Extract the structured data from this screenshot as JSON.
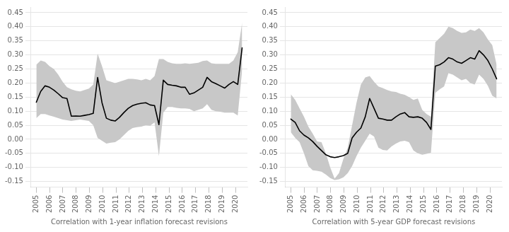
{
  "chart_data": [
    {
      "type": "line",
      "xlabel": "Correlation with 1-year inflation forecast revisions",
      "x": [
        2005,
        2005.329787,
        2005.659574,
        2005.989362,
        2006.319149,
        2006.648936,
        2006.978723,
        2007.308511,
        2007.638298,
        2007.968085,
        2008.297872,
        2008.62766,
        2008.957447,
        2009.287234,
        2009.617021,
        2009.946809,
        2010.276596,
        2010.606383,
        2010.93617,
        2011.265957,
        2011.595745,
        2011.925532,
        2012.255319,
        2012.585106,
        2012.914894,
        2013.244681,
        2013.574468,
        2013.904255,
        2014.234043,
        2014.56383,
        2014.893617,
        2015.223404,
        2015.553191,
        2015.882979,
        2016.212766,
        2016.542553,
        2016.87234,
        2017.202128,
        2017.531915,
        2017.861702,
        2018.191489,
        2018.521277,
        2018.851064,
        2019.180851,
        2019.510638,
        2019.840426,
        2020.170213,
        2020.5
      ],
      "values": [
        0.132,
        0.17,
        0.19,
        0.185,
        0.175,
        0.162,
        0.148,
        0.145,
        0.082,
        0.083,
        0.082,
        0.085,
        0.088,
        0.092,
        0.22,
        0.13,
        0.075,
        0.068,
        0.065,
        0.078,
        0.095,
        0.11,
        0.12,
        0.125,
        0.128,
        0.13,
        0.122,
        0.12,
        0.052,
        0.21,
        0.195,
        0.192,
        0.19,
        0.185,
        0.185,
        0.16,
        0.165,
        0.175,
        0.185,
        0.22,
        0.205,
        0.198,
        0.19,
        0.182,
        0.195,
        0.205,
        0.195,
        0.325
      ],
      "band": {
        "upper": [
          0.265,
          0.28,
          0.275,
          0.26,
          0.25,
          0.23,
          0.205,
          0.185,
          0.178,
          0.173,
          0.17,
          0.175,
          0.18,
          0.195,
          0.305,
          0.26,
          0.21,
          0.205,
          0.2,
          0.205,
          0.21,
          0.215,
          0.215,
          0.213,
          0.21,
          0.215,
          0.21,
          0.225,
          0.285,
          0.285,
          0.275,
          0.27,
          0.268,
          0.268,
          0.27,
          0.268,
          0.27,
          0.272,
          0.278,
          0.28,
          0.27,
          0.268,
          0.268,
          0.268,
          0.268,
          0.28,
          0.31,
          0.415
        ],
        "lower": [
          0.075,
          0.09,
          0.09,
          0.085,
          0.08,
          0.075,
          0.07,
          0.068,
          0.065,
          0.068,
          0.07,
          0.068,
          0.065,
          0.05,
          0.005,
          -0.005,
          -0.015,
          -0.012,
          -0.01,
          0.0,
          0.015,
          0.03,
          0.04,
          0.043,
          0.045,
          0.05,
          0.048,
          0.06,
          -0.06,
          0.095,
          0.115,
          0.115,
          0.112,
          0.11,
          0.11,
          0.108,
          0.1,
          0.105,
          0.11,
          0.125,
          0.105,
          0.1,
          0.098,
          0.095,
          0.095,
          0.095,
          0.085,
          0.245
        ],
        "color": "#c8c8c8"
      },
      "color": "#000000",
      "xlim": [
        2004.6,
        2020.9
      ],
      "xticks": [
        2005,
        2006,
        2007,
        2008,
        2009,
        2010,
        2011,
        2012,
        2013,
        2014,
        2015,
        2016,
        2017,
        2018,
        2019,
        2020
      ],
      "ylim": [
        -0.17,
        0.47
      ],
      "yticks": [
        -0.15,
        {
          "value": -0.1,
          "label": "-0.10"
        },
        -0.05,
        {
          "value": 0.0,
          "label": "0.00"
        },
        0.05,
        {
          "value": 0.1,
          "label": "0.10"
        },
        0.15,
        {
          "value": 0.2,
          "label": "0.20"
        },
        0.25,
        {
          "value": 0.3,
          "label": "0.30"
        },
        0.35,
        {
          "value": 0.4,
          "label": "0.40"
        },
        0.45
      ],
      "grid": "y"
    },
    {
      "type": "line",
      "xlabel": "Correlation with 5-year GDP forecast revisions",
      "x": [
        2005,
        2005.329787,
        2005.659574,
        2005.989362,
        2006.319149,
        2006.648936,
        2006.978723,
        2007.308511,
        2007.638298,
        2007.968085,
        2008.297872,
        2008.62766,
        2008.957447,
        2009.287234,
        2009.617021,
        2009.946809,
        2010.276596,
        2010.606383,
        2010.93617,
        2011.265957,
        2011.595745,
        2011.925532,
        2012.255319,
        2012.585106,
        2012.914894,
        2013.244681,
        2013.574468,
        2013.904255,
        2014.234043,
        2014.56383,
        2014.893617,
        2015.223404,
        2015.553191,
        2015.882979,
        2016.212766,
        2016.542553,
        2016.87234,
        2017.202128,
        2017.531915,
        2017.861702,
        2018.191489,
        2018.521277,
        2018.851064,
        2019.180851,
        2019.510638,
        2019.840426,
        2020.170213,
        2020.5
      ],
      "values": [
        0.072,
        0.06,
        0.03,
        0.015,
        0.005,
        -0.008,
        -0.025,
        -0.04,
        -0.055,
        -0.062,
        -0.065,
        -0.062,
        -0.058,
        -0.05,
        0.005,
        0.025,
        0.04,
        0.08,
        0.145,
        0.11,
        0.075,
        0.072,
        0.068,
        0.068,
        0.08,
        0.09,
        0.095,
        0.08,
        0.078,
        0.08,
        0.075,
        0.06,
        0.035,
        0.26,
        0.265,
        0.275,
        0.29,
        0.285,
        0.275,
        0.27,
        0.28,
        0.29,
        0.285,
        0.315,
        0.3,
        0.28,
        0.25,
        0.215
      ],
      "band": {
        "upper": [
          0.16,
          0.14,
          0.11,
          0.08,
          0.045,
          0.02,
          -0.008,
          -0.01,
          -0.05,
          -0.1,
          -0.14,
          -0.12,
          -0.07,
          -0.03,
          0.05,
          0.13,
          0.195,
          0.22,
          0.225,
          0.205,
          0.188,
          0.182,
          0.175,
          0.17,
          0.168,
          0.162,
          0.158,
          0.15,
          0.14,
          0.145,
          0.105,
          0.09,
          0.08,
          0.345,
          0.36,
          0.375,
          0.4,
          0.395,
          0.385,
          0.378,
          0.38,
          0.39,
          0.385,
          0.395,
          0.38,
          0.355,
          0.335,
          0.265
        ],
        "lower": [
          0.025,
          0.005,
          -0.01,
          -0.05,
          -0.095,
          -0.11,
          -0.112,
          -0.115,
          -0.125,
          -0.138,
          -0.145,
          -0.142,
          -0.135,
          -0.12,
          -0.095,
          -0.06,
          -0.03,
          -0.005,
          0.02,
          0.01,
          -0.03,
          -0.038,
          -0.04,
          -0.025,
          -0.015,
          -0.008,
          -0.005,
          -0.01,
          -0.04,
          -0.05,
          -0.055,
          -0.052,
          -0.048,
          0.165,
          0.178,
          0.188,
          0.235,
          0.23,
          0.22,
          0.21,
          0.215,
          0.2,
          0.195,
          0.23,
          0.215,
          0.19,
          0.155,
          0.145
        ],
        "color": "#c8c8c8"
      },
      "color": "#000000",
      "xlim": [
        2004.6,
        2020.9
      ],
      "xticks": [
        2005,
        2006,
        2007,
        2008,
        2009,
        2010,
        2011,
        2012,
        2013,
        2014,
        2015,
        2016,
        2017,
        2018,
        2019,
        2020
      ],
      "ylim": [
        -0.17,
        0.47
      ],
      "yticks": [
        -0.15,
        {
          "value": -0.1,
          "label": "-0.10"
        },
        -0.05,
        {
          "value": 0.0,
          "label": "0.00"
        },
        0.05,
        {
          "value": 0.1,
          "label": "0.10"
        },
        0.15,
        {
          "value": 0.2,
          "label": "0.20"
        },
        0.25,
        {
          "value": 0.3,
          "label": "0.30"
        },
        0.35,
        {
          "value": 0.4,
          "label": "0.40"
        },
        0.45
      ],
      "grid": "y"
    }
  ]
}
